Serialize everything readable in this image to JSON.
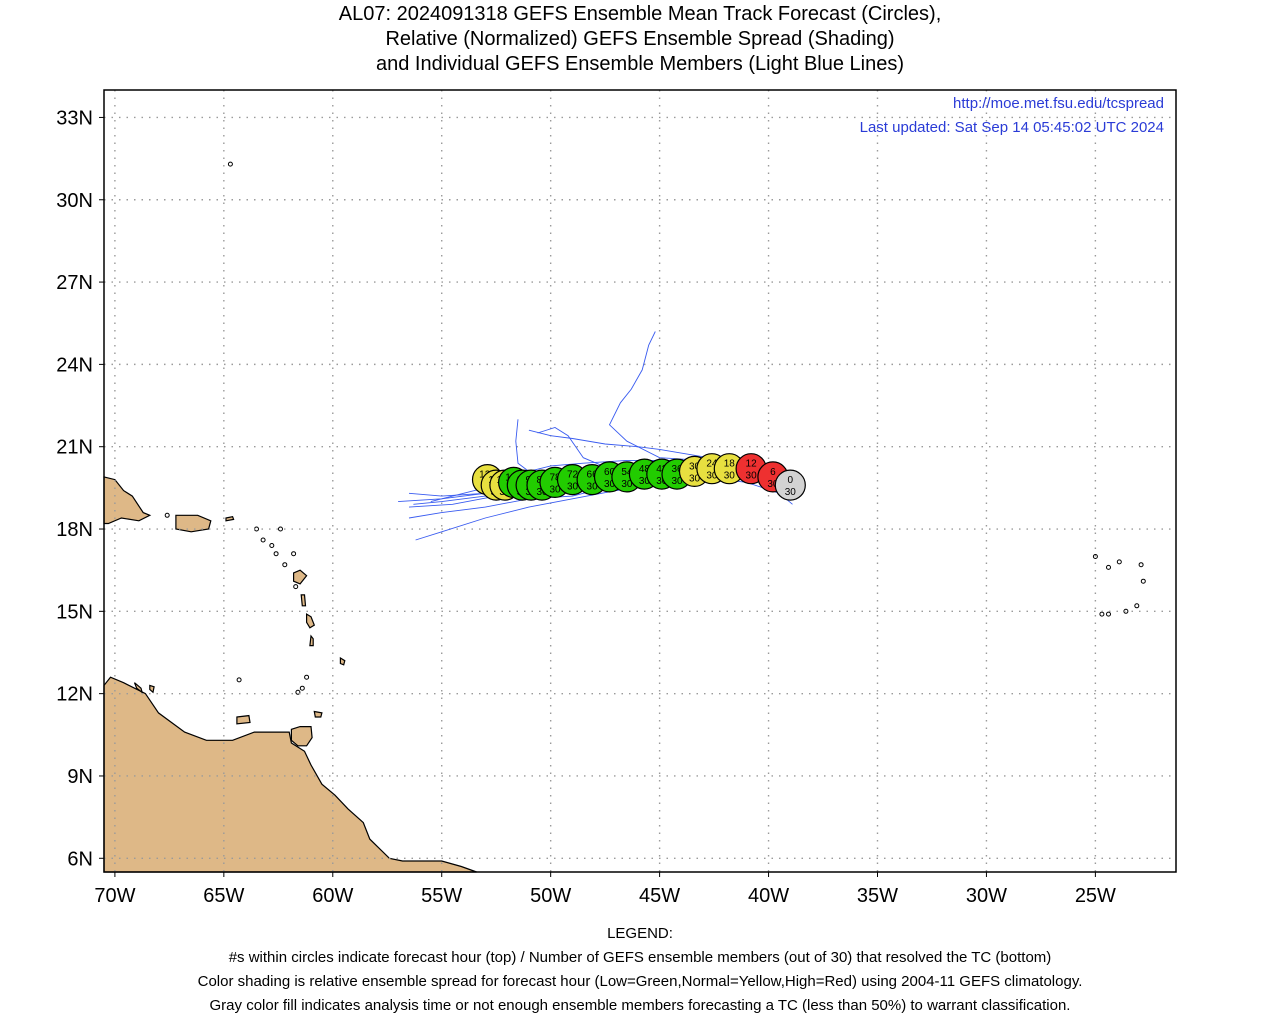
{
  "title": {
    "line1": "AL07: 2024091318 GEFS Ensemble Mean Track Forecast (Circles),",
    "line2": "Relative (Normalized) GEFS Ensemble Spread (Shading)",
    "line3": "and Individual GEFS Ensemble Members (Light Blue Lines)"
  },
  "map": {
    "lon_range": [
      -70.5,
      -21.3
    ],
    "lat_range": [
      5.5,
      34.0
    ],
    "lon_ticks": [
      {
        "lon": -70,
        "label": "70W"
      },
      {
        "lon": -65,
        "label": "65W"
      },
      {
        "lon": -60,
        "label": "60W"
      },
      {
        "lon": -55,
        "label": "55W"
      },
      {
        "lon": -50,
        "label": "50W"
      },
      {
        "lon": -45,
        "label": "45W"
      },
      {
        "lon": -40,
        "label": "40W"
      },
      {
        "lon": -35,
        "label": "35W"
      },
      {
        "lon": -30,
        "label": "30W"
      },
      {
        "lon": -25,
        "label": "25W"
      }
    ],
    "lat_ticks": [
      {
        "lat": 33,
        "label": "33N"
      },
      {
        "lat": 30,
        "label": "30N"
      },
      {
        "lat": 27,
        "label": "27N"
      },
      {
        "lat": 24,
        "label": "24N"
      },
      {
        "lat": 21,
        "label": "21N"
      },
      {
        "lat": 18,
        "label": "18N"
      },
      {
        "lat": 15,
        "label": "15N"
      },
      {
        "lat": 12,
        "label": "12N"
      },
      {
        "lat": 9,
        "label": "9N"
      },
      {
        "lat": 6,
        "label": "6N"
      }
    ],
    "url": "http://moe.met.fsu.edu/tcspread",
    "updated": "Last updated: Sat Sep 14 05:45:02 UTC 2024",
    "colors": {
      "land": "#deb887",
      "member_track": "#3a5cf0",
      "green": "#22cc00",
      "yellow": "#e8e040",
      "red": "#ee3030",
      "gray": "#d3d3d3",
      "url_text": "#2a3bd6"
    }
  },
  "chart_data": {
    "type": "scatter",
    "series_name": "GEFS Ensemble Mean Track",
    "points": [
      {
        "hour": "120",
        "members": "30",
        "lon": -52.9,
        "lat": 19.8,
        "color": "yellow"
      },
      {
        "hour": "114",
        "members": "30",
        "lon": -52.5,
        "lat": 19.6,
        "color": "yellow"
      },
      {
        "hour": "108",
        "members": "30",
        "lon": -52.1,
        "lat": 19.6,
        "color": "yellow"
      },
      {
        "hour": "102",
        "members": "30",
        "lon": -51.7,
        "lat": 19.7,
        "color": "green"
      },
      {
        "hour": "96",
        "members": "30",
        "lon": -51.3,
        "lat": 19.6,
        "color": "green"
      },
      {
        "hour": "90",
        "members": "30",
        "lon": -50.9,
        "lat": 19.6,
        "color": "green"
      },
      {
        "hour": "84",
        "members": "30",
        "lon": -50.4,
        "lat": 19.6,
        "color": "green"
      },
      {
        "hour": "78",
        "members": "30",
        "lon": -49.8,
        "lat": 19.7,
        "color": "green"
      },
      {
        "hour": "72",
        "members": "30",
        "lon": -49.0,
        "lat": 19.8,
        "color": "green"
      },
      {
        "hour": "66",
        "members": "30",
        "lon": -48.1,
        "lat": 19.8,
        "color": "green"
      },
      {
        "hour": "60",
        "members": "30",
        "lon": -47.3,
        "lat": 19.9,
        "color": "green"
      },
      {
        "hour": "54",
        "members": "30",
        "lon": -46.5,
        "lat": 19.9,
        "color": "green"
      },
      {
        "hour": "48",
        "members": "30",
        "lon": -45.7,
        "lat": 20.0,
        "color": "green"
      },
      {
        "hour": "42",
        "members": "30",
        "lon": -44.9,
        "lat": 20.0,
        "color": "green"
      },
      {
        "hour": "36",
        "members": "30",
        "lon": -44.2,
        "lat": 20.0,
        "color": "green"
      },
      {
        "hour": "30",
        "members": "30",
        "lon": -43.4,
        "lat": 20.1,
        "color": "yellow"
      },
      {
        "hour": "24",
        "members": "30",
        "lon": -42.6,
        "lat": 20.2,
        "color": "yellow"
      },
      {
        "hour": "18",
        "members": "30",
        "lon": -41.8,
        "lat": 20.2,
        "color": "yellow"
      },
      {
        "hour": "12",
        "members": "30",
        "lon": -40.8,
        "lat": 20.2,
        "color": "red"
      },
      {
        "hour": "6",
        "members": "30",
        "lon": -39.8,
        "lat": 19.9,
        "color": "red"
      },
      {
        "hour": "0",
        "members": "30",
        "lon": -39.0,
        "lat": 19.6,
        "color": "gray"
      }
    ],
    "member_tracks": [
      [
        [
          -38.9,
          18.9
        ],
        [
          -39.5,
          19.3
        ],
        [
          -41,
          19.7
        ],
        [
          -43,
          19.9
        ],
        [
          -45,
          19.9
        ],
        [
          -47,
          19.8
        ],
        [
          -49,
          19.5
        ],
        [
          -51,
          19.1
        ],
        [
          -53,
          18.8
        ],
        [
          -55,
          18.6
        ],
        [
          -56.5,
          18.4
        ]
      ],
      [
        [
          -38.9,
          19.6
        ],
        [
          -40.5,
          20.0
        ],
        [
          -42.5,
          20.1
        ],
        [
          -44.5,
          20.0
        ],
        [
          -46.5,
          19.9
        ],
        [
          -48.5,
          19.7
        ],
        [
          -50.5,
          19.5
        ],
        [
          -52.5,
          19.2
        ],
        [
          -54.5,
          18.9
        ],
        [
          -56.5,
          18.8
        ]
      ],
      [
        [
          -38.9,
          19.6
        ],
        [
          -40.5,
          20.1
        ],
        [
          -42.5,
          20.3
        ],
        [
          -44.5,
          20.3
        ],
        [
          -46.5,
          20.2
        ],
        [
          -48.5,
          20.1
        ],
        [
          -50.5,
          19.9
        ],
        [
          -52,
          19.7
        ],
        [
          -53.5,
          19.4
        ],
        [
          -55.5,
          19.0
        ]
      ],
      [
        [
          -38.9,
          19.6
        ],
        [
          -40.5,
          20.2
        ],
        [
          -42.5,
          20.4
        ],
        [
          -44.5,
          20.5
        ],
        [
          -46.5,
          20.5
        ],
        [
          -48.5,
          20.4
        ],
        [
          -50,
          20.3
        ],
        [
          -51.5,
          20.0
        ],
        [
          -53.5,
          19.6
        ]
      ],
      [
        [
          -38.9,
          19.6
        ],
        [
          -41,
          20.1
        ],
        [
          -43,
          20.2
        ],
        [
          -45,
          20.1
        ],
        [
          -47,
          20.0
        ],
        [
          -49,
          19.8
        ],
        [
          -51,
          19.6
        ],
        [
          -53,
          19.3
        ],
        [
          -55,
          19.1
        ],
        [
          -57,
          19.0
        ]
      ],
      [
        [
          -38.9,
          19.6
        ],
        [
          -41,
          19.9
        ],
        [
          -43,
          19.8
        ],
        [
          -45,
          19.6
        ],
        [
          -47,
          19.4
        ],
        [
          -49,
          19.1
        ],
        [
          -51,
          18.8
        ],
        [
          -53,
          18.4
        ],
        [
          -55,
          17.9
        ],
        [
          -56.2,
          17.6
        ]
      ],
      [
        [
          -38.9,
          19.6
        ],
        [
          -40.5,
          20.2
        ],
        [
          -42,
          20.5
        ],
        [
          -43.5,
          20.7
        ],
        [
          -45,
          20.9
        ],
        [
          -46,
          21.0
        ],
        [
          -47.5,
          21.1
        ],
        [
          -49,
          21.3
        ],
        [
          -50,
          21.4
        ],
        [
          -51,
          21.6
        ]
      ],
      [
        [
          -38.9,
          19.6
        ],
        [
          -41,
          20.2
        ],
        [
          -43,
          20.5
        ],
        [
          -45,
          20.6
        ],
        [
          -46.5,
          21.2
        ],
        [
          -47.3,
          21.8
        ],
        [
          -46.8,
          22.6
        ],
        [
          -46.3,
          23.1
        ],
        [
          -45.8,
          23.8
        ],
        [
          -45.5,
          24.7
        ],
        [
          -45.2,
          25.2
        ]
      ],
      [
        [
          -38.9,
          19.6
        ],
        [
          -41,
          20.1
        ],
        [
          -43,
          20.2
        ],
        [
          -45,
          20.2
        ],
        [
          -47,
          20.1
        ],
        [
          -48.5,
          20.6
        ],
        [
          -49.2,
          21.4
        ],
        [
          -49.8,
          21.7
        ],
        [
          -50.6,
          21.5
        ]
      ],
      [
        [
          -38.9,
          19.6
        ],
        [
          -41,
          20.0
        ],
        [
          -43,
          20.1
        ],
        [
          -45,
          20.0
        ],
        [
          -47,
          19.9
        ],
        [
          -49,
          19.9
        ],
        [
          -50.5,
          19.8
        ],
        [
          -51.5,
          20.4
        ],
        [
          -51.6,
          21.2
        ],
        [
          -51.5,
          22.0
        ]
      ],
      [
        [
          -38.9,
          19.6
        ],
        [
          -41,
          20.0
        ],
        [
          -43,
          20.0
        ],
        [
          -45,
          19.8
        ],
        [
          -47,
          19.6
        ],
        [
          -48,
          19.4
        ],
        [
          -49,
          19.2
        ],
        [
          -51,
          19.1
        ],
        [
          -53,
          19.3
        ],
        [
          -55,
          19.2
        ],
        [
          -56.5,
          19.3
        ]
      ],
      [
        [
          -38.9,
          19.6
        ],
        [
          -41,
          20.0
        ],
        [
          -43,
          20.1
        ],
        [
          -45,
          20.0
        ],
        [
          -47,
          19.8
        ],
        [
          -49,
          19.6
        ],
        [
          -51,
          19.4
        ],
        [
          -53,
          19.2
        ],
        [
          -55,
          19.0
        ],
        [
          -56.3,
          18.9
        ]
      ]
    ]
  },
  "legend": {
    "heading": "LEGEND:",
    "line1": "#s within circles indicate forecast hour (top) / Number of GEFS ensemble members (out of 30) that resolved the TC (bottom)",
    "line2": "Color shading is relative ensemble spread for forecast hour (Low=Green,Normal=Yellow,High=Red) using 2004-11 GEFS climatology.",
    "line3": "Gray color fill indicates analysis time or not enough ensemble members forecasting a TC (less than 50%) to warrant classification."
  }
}
